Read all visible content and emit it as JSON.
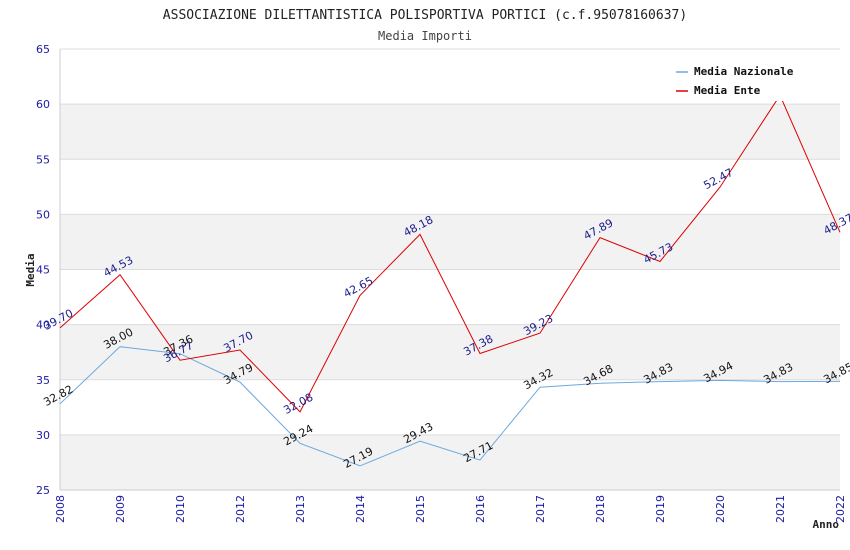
{
  "chart_data": {
    "type": "line",
    "title": "ASSOCIAZIONE DILETTANTISTICA POLISPORTIVA PORTICI (c.f.95078160637)",
    "subtitle": "Media Importi",
    "xlabel": "Anno",
    "ylabel": "Media",
    "ylim": [
      25,
      65
    ],
    "yticks": [
      "25",
      "30",
      "35",
      "40",
      "45",
      "50",
      "55",
      "60",
      "65"
    ],
    "categories": [
      "2008",
      "2009",
      "2010",
      "2012",
      "2013",
      "2014",
      "2015",
      "2016",
      "2017",
      "2018",
      "2019",
      "2020",
      "2021",
      "2022"
    ],
    "legend_position": "top-right",
    "series": [
      {
        "name": "Media Nazionale",
        "color": "#6aa8e0",
        "values": [
          32.82,
          38.0,
          37.36,
          34.79,
          29.24,
          27.19,
          29.43,
          27.71,
          34.32,
          34.68,
          34.83,
          34.94,
          34.83,
          34.85
        ],
        "labels": [
          "32.82",
          "38.00",
          "37.36",
          "34.79",
          "29.24",
          "27.19",
          "29.43",
          "27.71",
          "34.32",
          "34.68",
          "34.83",
          "34.94",
          "34.83",
          "34.85"
        ],
        "label_color": "#111111"
      },
      {
        "name": "Media Ente",
        "color": "#dd0000",
        "values": [
          39.7,
          44.53,
          36.77,
          37.7,
          32.08,
          42.65,
          48.18,
          37.38,
          39.23,
          47.89,
          45.73,
          52.47,
          60.8,
          48.37
        ],
        "labels": [
          "39.70",
          "44.53",
          "36.77",
          "37.70",
          "32.08",
          "42.65",
          "48.18",
          "37.38",
          "39.23",
          "47.89",
          "45.73",
          "52.47",
          "",
          "48.37"
        ],
        "label_color": "#1a1a8c"
      }
    ]
  }
}
